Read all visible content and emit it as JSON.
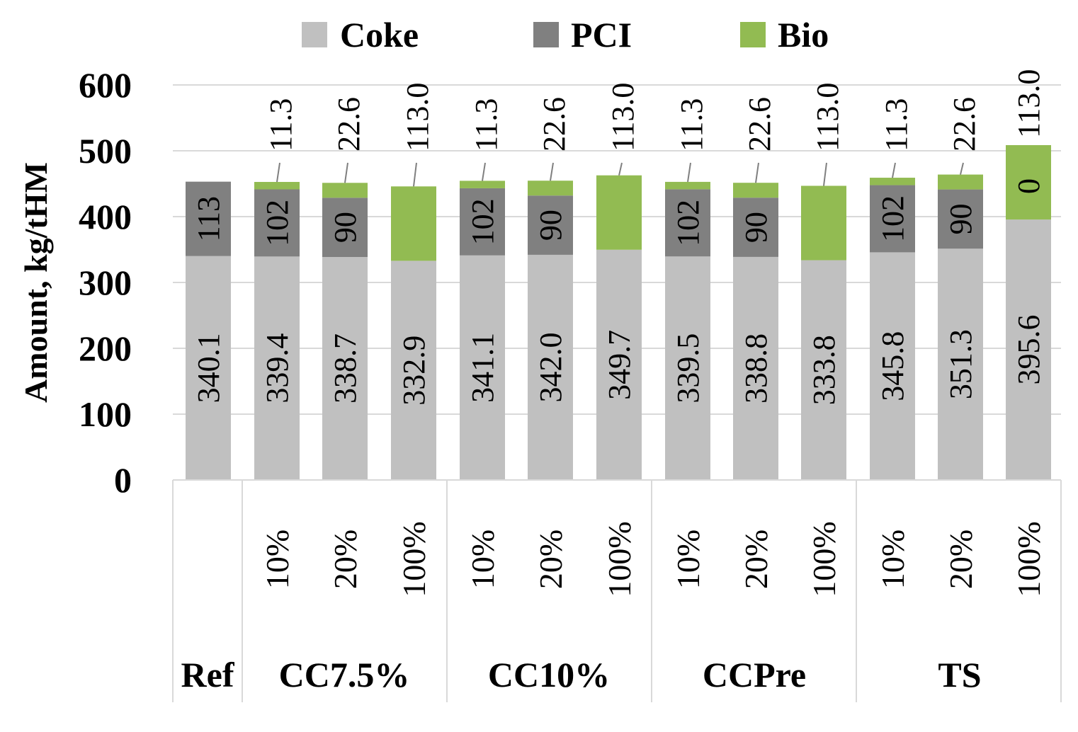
{
  "chart_data": {
    "type": "bar",
    "stacked": true,
    "title": "",
    "ylabel": "Amount, kg/tHM",
    "xlabel": "",
    "ylim": [
      0,
      600
    ],
    "yticks": [
      0,
      100,
      200,
      300,
      400,
      500,
      600
    ],
    "grid": true,
    "legend_position": "top",
    "colors": {
      "Coke": "#c0c0c0",
      "PCI": "#808080",
      "Bio": "#92bb52"
    },
    "groups": [
      {
        "name": "Ref",
        "subcategories": [
          ""
        ]
      },
      {
        "name": "CC7.5%",
        "subcategories": [
          "10%",
          "20%",
          "100%"
        ]
      },
      {
        "name": "CC10%",
        "subcategories": [
          "10%",
          "20%",
          "100%"
        ]
      },
      {
        "name": "CCPre",
        "subcategories": [
          "10%",
          "20%",
          "100%"
        ]
      },
      {
        "name": "TS",
        "subcategories": [
          "10%",
          "20%",
          "100%"
        ]
      }
    ],
    "series": [
      {
        "name": "Coke",
        "values": [
          340.1,
          339.4,
          338.7,
          332.9,
          341.1,
          342.0,
          349.7,
          339.5,
          338.8,
          333.8,
          345.8,
          351.3,
          395.6
        ],
        "labels": [
          "340.1",
          "339.4",
          "338.7",
          "332.9",
          "341.1",
          "342.0",
          "349.7",
          "339.5",
          "338.8",
          "333.8",
          "345.8",
          "351.3",
          "395.6"
        ]
      },
      {
        "name": "PCI",
        "values": [
          113,
          102,
          90,
          0,
          102,
          90,
          0,
          102,
          90,
          0,
          102,
          90,
          0
        ],
        "labels": [
          "113",
          "102",
          "90",
          "",
          "102",
          "90",
          "",
          "102",
          "90",
          "",
          "102",
          "90",
          "0"
        ]
      },
      {
        "name": "Bio",
        "values": [
          0,
          11.3,
          22.6,
          113.0,
          11.3,
          22.6,
          113.0,
          11.3,
          22.6,
          113.0,
          11.3,
          22.6,
          113.0
        ],
        "labels": [
          "",
          "11.3",
          "22.6",
          "113.0",
          "11.3",
          "22.6",
          "113.0",
          "11.3",
          "22.6",
          "113.0",
          "11.3",
          "22.6",
          "113.0"
        ]
      }
    ]
  }
}
